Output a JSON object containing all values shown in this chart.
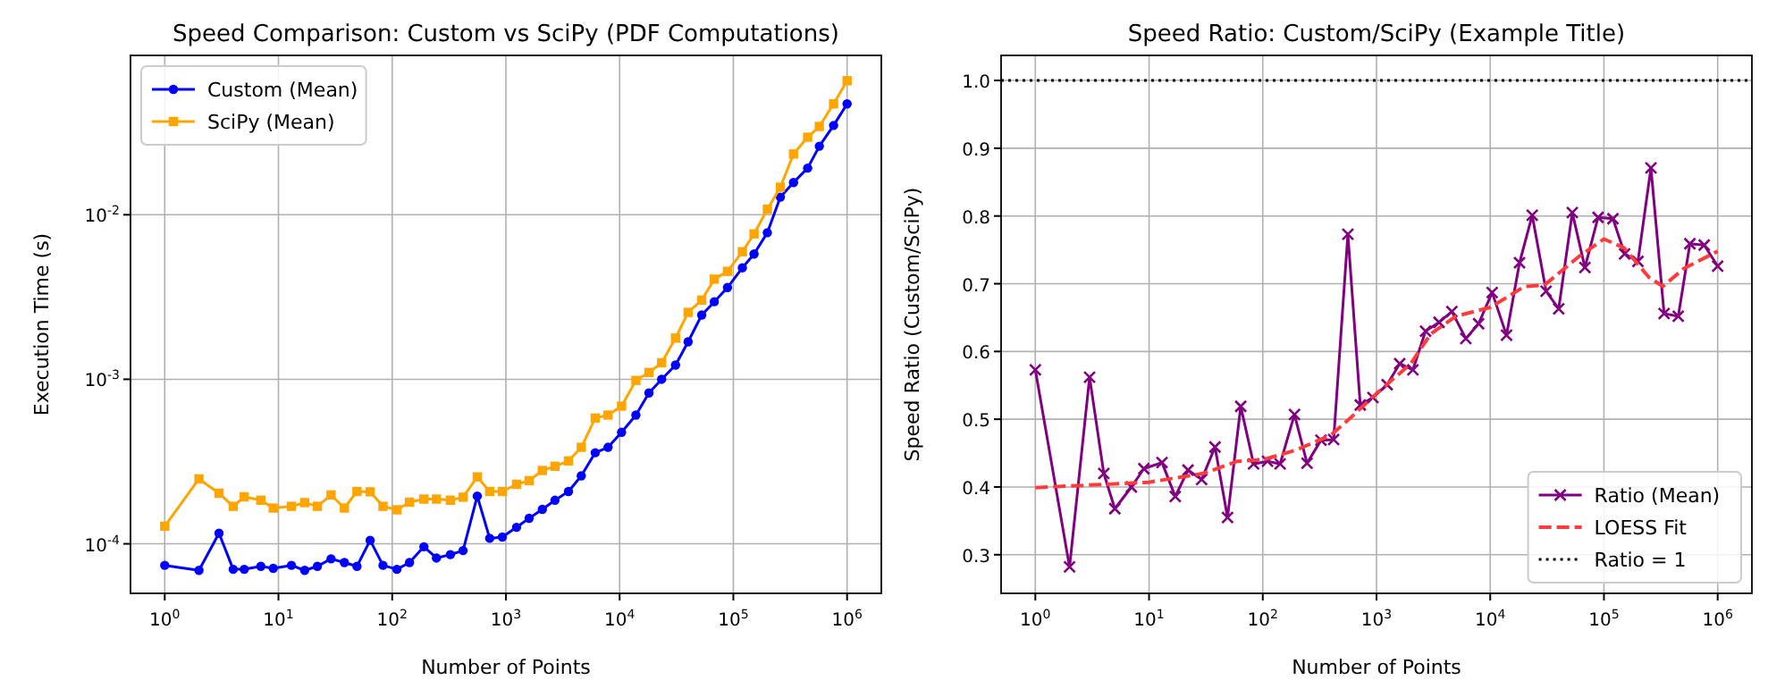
{
  "chart_data": [
    {
      "type": "line",
      "title": "Speed Comparison: Custom vs SciPy (PDF Computations)",
      "xlabel": "Number of Points",
      "ylabel": "Execution Time (s)",
      "log": "xy",
      "grid": true,
      "legend": "top left",
      "x": [
        1,
        2,
        3,
        4,
        5,
        7,
        9,
        13,
        17,
        22,
        29,
        38,
        49,
        64,
        83,
        110,
        142,
        190,
        245,
        325,
        420,
        560,
        720,
        930,
        1240,
        1600,
        2090,
        2700,
        3550,
        4600,
        6100,
        7900,
        10400,
        13900,
        18100,
        23400,
        31000,
        40000,
        52700,
        68000,
        88800,
        120000,
        152000,
        199000,
        259000,
        338000,
        450000,
        570000,
        761000,
        1000000
      ],
      "xlim": [
        0.5,
        2000000
      ],
      "xticks": [
        {
          "value": 1,
          "label": "10$^{0}$"
        },
        {
          "value": 10,
          "label": "10$^{1}$"
        },
        {
          "value": 100,
          "label": "10$^{2}$"
        },
        {
          "value": 1000,
          "label": "10$^{3}$"
        },
        {
          "value": 10000,
          "label": "10$^{4}$"
        },
        {
          "value": 100000,
          "label": "10$^{5}$"
        },
        {
          "value": 1000000,
          "label": "10$^{6}$"
        }
      ],
      "ylim": [
        5e-05,
        0.093
      ],
      "yticks": [
        {
          "value": 0.0001,
          "label": "10$^{-4}$"
        },
        {
          "value": 0.001,
          "label": "10$^{-3}$"
        },
        {
          "value": 0.01,
          "label": "10$^{-2}$"
        }
      ],
      "series": [
        {
          "name": "Custom (Mean)",
          "color": "#0000ff",
          "marker": "circle",
          "values": [
            7.4e-05,
            6.9e-05,
            0.000116,
            7e-05,
            7e-05,
            7.3e-05,
            7.1e-05,
            7.4e-05,
            6.9e-05,
            7.3e-05,
            8.1e-05,
            7.7e-05,
            7.3e-05,
            0.000105,
            7.4e-05,
            7e-05,
            7.7e-05,
            9.6e-05,
            8.2e-05,
            8.6e-05,
            9.1e-05,
            0.000195,
            0.000108,
            0.00011,
            0.000126,
            0.000143,
            0.000162,
            0.000184,
            0.000208,
            0.000259,
            0.000358,
            0.000386,
            0.000476,
            0.000606,
            0.000826,
            0.001,
            0.00122,
            0.00169,
            0.00246,
            0.00296,
            0.00361,
            0.00476,
            0.00577,
            0.00778,
            0.0128,
            0.0157,
            0.0192,
            0.0261,
            0.0349,
            0.0472
          ]
        },
        {
          "name": "SciPy (Mean)",
          "color": "#ffa500",
          "marker": "square",
          "values": [
            0.000128,
            0.000248,
            0.000203,
            0.000169,
            0.000193,
            0.000184,
            0.000165,
            0.000169,
            0.000178,
            0.000169,
            0.000198,
            0.000165,
            0.000208,
            0.000207,
            0.000169,
            0.000161,
            0.000179,
            0.000187,
            0.000187,
            0.000184,
            0.000192,
            0.000255,
            0.000208,
            0.000208,
            0.00023,
            0.000242,
            0.000279,
            0.000296,
            0.000319,
            0.000386,
            0.000581,
            0.000606,
            0.000687,
            0.000984,
            0.0011,
            0.00126,
            0.00178,
            0.00255,
            0.00303,
            0.00406,
            0.00453,
            0.00596,
            0.00765,
            0.0108,
            0.0147,
            0.0234,
            0.0296,
            0.0344,
            0.0472,
            0.0653
          ]
        }
      ]
    },
    {
      "type": "line",
      "title": "Speed Ratio: Custom/SciPy (Example Title)",
      "xlabel": "Number of Points",
      "ylabel": "Speed Ratio (Custom/SciPy)",
      "log": "x",
      "grid": true,
      "legend": "bottom right",
      "x": [
        1,
        2,
        3,
        4,
        5,
        7,
        9,
        13,
        17,
        22,
        29,
        38,
        49,
        64,
        83,
        110,
        142,
        190,
        245,
        325,
        420,
        560,
        720,
        930,
        1240,
        1600,
        2090,
        2700,
        3550,
        4600,
        6100,
        7900,
        10400,
        13900,
        18100,
        23400,
        31000,
        40000,
        52700,
        68000,
        88800,
        120000,
        152000,
        199000,
        259000,
        338000,
        450000,
        570000,
        761000,
        1000000
      ],
      "xlim": [
        0.5,
        2000000
      ],
      "xticks": [
        {
          "value": 1,
          "label": "10$^{0}$"
        },
        {
          "value": 10,
          "label": "10$^{1}$"
        },
        {
          "value": 100,
          "label": "10$^{2}$"
        },
        {
          "value": 1000,
          "label": "10$^{3}$"
        },
        {
          "value": 10000,
          "label": "10$^{4}$"
        },
        {
          "value": 100000,
          "label": "10$^{5}$"
        },
        {
          "value": 1000000,
          "label": "10$^{6}$"
        }
      ],
      "ylim": [
        0.243,
        1.037
      ],
      "yticks": [
        0.3,
        0.4,
        0.5,
        0.6,
        0.7,
        0.8,
        0.9,
        {
          "value": 1,
          "label": "1.0"
        }
      ],
      "series": [
        {
          "name": "Ratio (Mean)",
          "color": "#800080",
          "marker": "cross",
          "values": [
            0.573,
            0.282,
            0.562,
            0.42,
            0.368,
            0.4,
            0.427,
            0.436,
            0.386,
            0.425,
            0.411,
            0.459,
            0.355,
            0.519,
            0.434,
            0.438,
            0.434,
            0.507,
            0.435,
            0.469,
            0.47,
            0.773,
            0.521,
            0.532,
            0.551,
            0.582,
            0.573,
            0.63,
            0.643,
            0.659,
            0.619,
            0.641,
            0.687,
            0.624,
            0.731,
            0.801,
            0.689,
            0.663,
            0.805,
            0.724,
            0.798,
            0.796,
            0.744,
            0.733,
            0.871,
            0.656,
            0.652,
            0.759,
            0.757,
            0.726
          ]
        },
        {
          "name": "LOESS Fit",
          "color": "#ff3b3b",
          "marker": "none",
          "line_style": "dashed",
          "x": [
            1,
            10,
            30,
            60,
            100,
            200,
            400,
            600,
            1000,
            2000,
            3000,
            5000,
            10000,
            20000,
            30000,
            60000,
            100000,
            150000,
            250000,
            330000,
            500000,
            1000000
          ],
          "values": [
            0.399,
            0.407,
            0.42,
            0.438,
            0.44,
            0.455,
            0.477,
            0.503,
            0.538,
            0.582,
            0.626,
            0.652,
            0.665,
            0.696,
            0.698,
            0.74,
            0.766,
            0.753,
            0.709,
            0.696,
            0.722,
            0.748
          ]
        }
      ],
      "ref_lines": [
        {
          "axis": "y",
          "value": 1,
          "label": "Ratio = 1",
          "color": "#000000",
          "line_style": "dotted"
        }
      ]
    }
  ]
}
